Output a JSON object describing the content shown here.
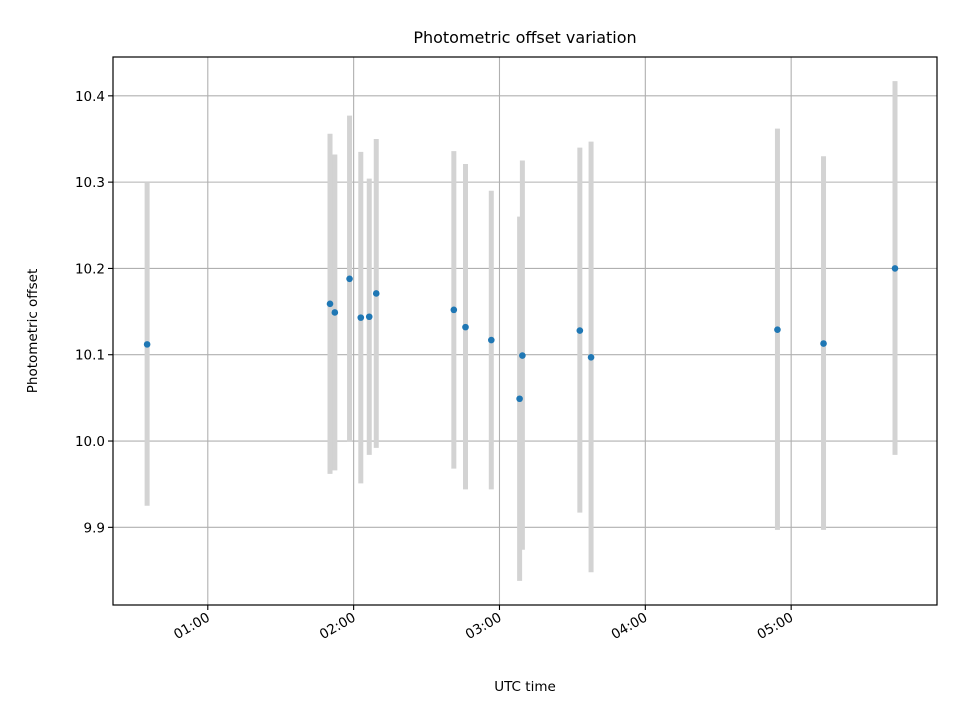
{
  "chart_data": {
    "type": "scatter",
    "title": "Photometric offset variation",
    "xlabel": "UTC time",
    "ylabel": "Photometric offset",
    "xlim_hours": [
      0.35,
      6.0
    ],
    "ylim": [
      9.81,
      10.445
    ],
    "grid": true,
    "colors": {
      "marker": "#1f77b4",
      "errorbar": "#d3d3d3",
      "grid": "#b0b0b0",
      "axes": "#000000"
    },
    "x_ticks": [
      {
        "value": 1.0,
        "label": "01:00"
      },
      {
        "value": 2.0,
        "label": "02:00"
      },
      {
        "value": 3.0,
        "label": "03:00"
      },
      {
        "value": 4.0,
        "label": "04:00"
      },
      {
        "value": 5.0,
        "label": "05:00"
      }
    ],
    "y_ticks": [
      {
        "value": 9.9,
        "label": "9.9"
      },
      {
        "value": 10.0,
        "label": "10.0"
      },
      {
        "value": 10.1,
        "label": "10.1"
      },
      {
        "value": 10.2,
        "label": "10.2"
      },
      {
        "value": 10.3,
        "label": "10.3"
      },
      {
        "value": 10.4,
        "label": "10.4"
      }
    ],
    "points": [
      {
        "time": "00:35",
        "x": 0.584,
        "y": 10.112,
        "err_low": 9.925,
        "err_high": 10.299
      },
      {
        "time": "01:50",
        "x": 1.838,
        "y": 10.159,
        "err_low": 9.962,
        "err_high": 10.356
      },
      {
        "time": "01:52",
        "x": 1.871,
        "y": 10.149,
        "err_low": 9.966,
        "err_high": 10.332
      },
      {
        "time": "01:58",
        "x": 1.972,
        "y": 10.188,
        "err_low": 9.999,
        "err_high": 10.377
      },
      {
        "time": "02:03",
        "x": 2.049,
        "y": 10.143,
        "err_low": 9.951,
        "err_high": 10.335
      },
      {
        "time": "02:06",
        "x": 2.107,
        "y": 10.144,
        "err_low": 9.984,
        "err_high": 10.304
      },
      {
        "time": "02:09",
        "x": 2.155,
        "y": 10.171,
        "err_low": 9.992,
        "err_high": 10.35
      },
      {
        "time": "02:41",
        "x": 2.687,
        "y": 10.152,
        "err_low": 9.968,
        "err_high": 10.336
      },
      {
        "time": "02:46",
        "x": 2.767,
        "y": 10.132,
        "err_low": 9.944,
        "err_high": 10.321
      },
      {
        "time": "02:57",
        "x": 2.944,
        "y": 10.117,
        "err_low": 9.944,
        "err_high": 10.29
      },
      {
        "time": "03:08",
        "x": 3.138,
        "y": 10.049,
        "err_low": 9.838,
        "err_high": 10.26
      },
      {
        "time": "03:09",
        "x": 3.157,
        "y": 10.099,
        "err_low": 9.874,
        "err_high": 10.325
      },
      {
        "time": "03:33",
        "x": 3.551,
        "y": 10.128,
        "err_low": 9.917,
        "err_high": 10.34
      },
      {
        "time": "03:37",
        "x": 3.628,
        "y": 10.097,
        "err_low": 9.848,
        "err_high": 10.347
      },
      {
        "time": "04:54",
        "x": 4.906,
        "y": 10.129,
        "err_low": 9.897,
        "err_high": 10.362
      },
      {
        "time": "05:13",
        "x": 5.222,
        "y": 10.113,
        "err_low": 9.897,
        "err_high": 10.33
      },
      {
        "time": "05:42",
        "x": 5.712,
        "y": 10.2,
        "err_low": 9.984,
        "err_high": 10.417
      }
    ]
  }
}
